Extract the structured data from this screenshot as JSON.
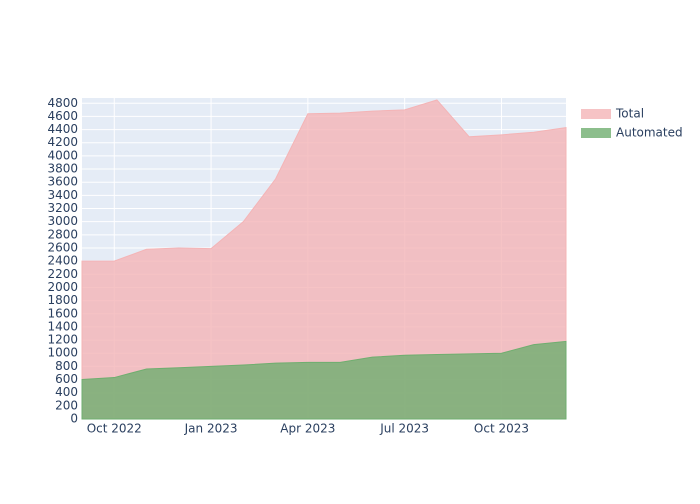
{
  "chart_data": {
    "type": "area",
    "x": [
      "2022-09",
      "2022-10",
      "2022-11",
      "2022-12",
      "2023-01",
      "2023-02",
      "2023-03",
      "2023-04",
      "2023-05",
      "2023-06",
      "2023-07",
      "2023-08",
      "2023-09",
      "2023-10",
      "2023-11",
      "2023-12"
    ],
    "series": [
      {
        "name": "Total",
        "color": "#f4b4b6",
        "values": [
          2400,
          2400,
          2580,
          2600,
          2590,
          3000,
          3650,
          4640,
          4650,
          4680,
          4700,
          4850,
          4290,
          4320,
          4360,
          4430
        ]
      },
      {
        "name": "Automated",
        "color": "#6fae6f",
        "values": [
          600,
          630,
          760,
          780,
          800,
          820,
          850,
          860,
          860,
          940,
          970,
          980,
          990,
          1000,
          1130,
          1180
        ]
      }
    ],
    "xlim": [
      "2022-09",
      "2023-12"
    ],
    "xticks": [
      {
        "value": "2022-10",
        "label": "Oct 2022"
      },
      {
        "value": "2023-01",
        "label": "Jan 2023"
      },
      {
        "value": "2023-04",
        "label": "Apr 2023"
      },
      {
        "value": "2023-07",
        "label": "Jul 2023"
      },
      {
        "value": "2023-10",
        "label": "Oct 2023"
      }
    ],
    "ylim": [
      0,
      4880
    ],
    "yticks": [
      0,
      200,
      400,
      600,
      800,
      1000,
      1200,
      1400,
      1600,
      1800,
      2000,
      2200,
      2400,
      2600,
      2800,
      3000,
      3200,
      3400,
      3600,
      3800,
      4000,
      4200,
      4400,
      4600,
      4800
    ],
    "grid": true,
    "legend": "right"
  }
}
